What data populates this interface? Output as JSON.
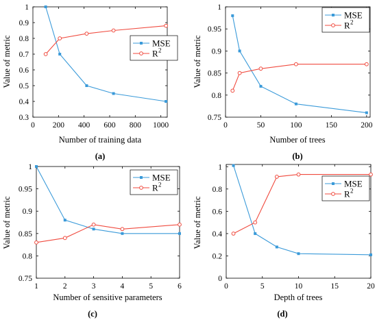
{
  "colors": {
    "mse": "#3a9ad9",
    "r2": "#f04a3e"
  },
  "legend": {
    "mse": "MSE",
    "r2": "R",
    "r2_sup": "2"
  },
  "chart_data": [
    {
      "type": "line",
      "caption": "(a)",
      "xlabel": "Number of training data",
      "ylabel": "Value of metric",
      "xlim": [
        0,
        1050
      ],
      "ylim": [
        0.3,
        1.0
      ],
      "xticks": [
        0,
        200,
        400,
        600,
        800,
        1000
      ],
      "yticks": [
        0.3,
        0.4,
        0.5,
        0.6,
        0.7,
        0.8,
        0.9,
        1.0
      ],
      "ytick_labels": [
        "0.3",
        "0.4",
        "0.5",
        "0.6",
        "0.7",
        "0.8",
        "0.9",
        "1"
      ],
      "legend_position": "upper-middle",
      "series": [
        {
          "name": "MSE",
          "x": [
            100,
            210,
            420,
            630,
            1040
          ],
          "y": [
            1.0,
            0.7,
            0.5,
            0.45,
            0.4
          ]
        },
        {
          "name": "R2",
          "x": [
            100,
            210,
            420,
            630,
            1040
          ],
          "y": [
            0.7,
            0.8,
            0.83,
            0.85,
            0.88
          ]
        }
      ]
    },
    {
      "type": "line",
      "caption": "(b)",
      "xlabel": "Number of trees",
      "ylabel": "Value of metric",
      "xlim": [
        0,
        205
      ],
      "ylim": [
        0.75,
        1.0
      ],
      "xticks": [
        0,
        50,
        100,
        150,
        200
      ],
      "yticks": [
        0.75,
        0.8,
        0.85,
        0.9,
        0.95,
        1.0
      ],
      "ytick_labels": [
        "0.75",
        "0.8",
        "0.85",
        "0.9",
        "0.95",
        "1"
      ],
      "legend_position": "top-right",
      "series": [
        {
          "name": "MSE",
          "x": [
            10,
            20,
            50,
            100,
            200
          ],
          "y": [
            0.98,
            0.9,
            0.82,
            0.78,
            0.76
          ]
        },
        {
          "name": "R2",
          "x": [
            10,
            20,
            50,
            100,
            200
          ],
          "y": [
            0.81,
            0.85,
            0.86,
            0.87,
            0.87
          ]
        }
      ]
    },
    {
      "type": "line",
      "caption": "(c)",
      "xlabel": "Number of sensitive parameters",
      "ylabel": "Value of metric",
      "xlim": [
        1,
        6
      ],
      "ylim": [
        0.75,
        1.0
      ],
      "xticks": [
        1,
        2,
        3,
        4,
        5,
        6
      ],
      "yticks": [
        0.75,
        0.8,
        0.85,
        0.9,
        0.95,
        1.0
      ],
      "ytick_labels": [
        "0.75",
        "0.8",
        "0.85",
        "0.9",
        "0.95",
        "1"
      ],
      "legend_position": "top-right",
      "series": [
        {
          "name": "MSE",
          "x": [
            1,
            2,
            3,
            4,
            6
          ],
          "y": [
            1.0,
            0.88,
            0.86,
            0.85,
            0.85
          ]
        },
        {
          "name": "R2",
          "x": [
            1,
            2,
            3,
            4,
            6
          ],
          "y": [
            0.83,
            0.84,
            0.87,
            0.86,
            0.87
          ]
        }
      ]
    },
    {
      "type": "line",
      "caption": "(d)",
      "xlabel": "Depth of trees",
      "ylabel": "Value of metric",
      "xlim": [
        0,
        20
      ],
      "ylim": [
        0,
        1.02
      ],
      "xticks": [
        0,
        5,
        10,
        15,
        20
      ],
      "yticks": [
        0,
        0.2,
        0.4,
        0.6,
        0.8,
        1.0
      ],
      "ytick_labels": [
        "0",
        "0.2",
        "0.4",
        "0.6",
        "0.8",
        "1"
      ],
      "legend_position": "middle-right",
      "series": [
        {
          "name": "MSE",
          "x": [
            1,
            4,
            7,
            10,
            20
          ],
          "y": [
            1.01,
            0.4,
            0.28,
            0.22,
            0.21
          ]
        },
        {
          "name": "R2",
          "x": [
            1,
            4,
            7,
            10,
            20
          ],
          "y": [
            0.4,
            0.5,
            0.91,
            0.93,
            0.93
          ]
        }
      ]
    }
  ]
}
